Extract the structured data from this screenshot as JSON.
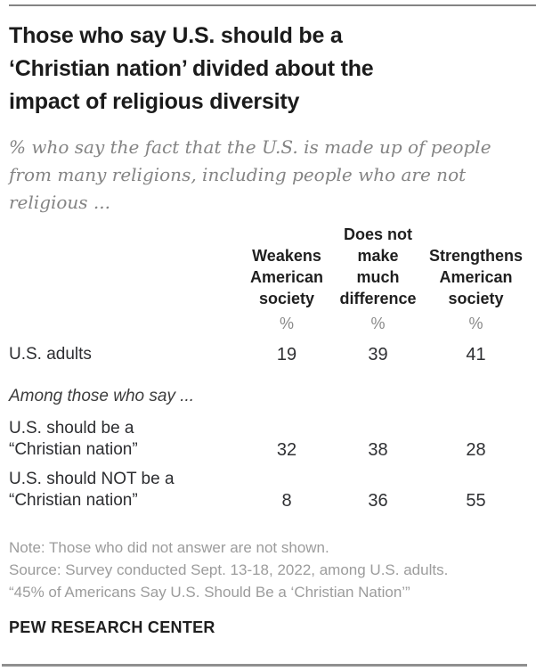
{
  "header": {
    "title": "Those who say U.S. should be a\n‘Christian nation’ divided about the\nimpact of religious diversity",
    "subtitle": "% who say the fact that the U.S. is made up of people\nfrom many religions, including people who are not\nreligious ..."
  },
  "ui": {
    "table": {
      "columns": [
        {
          "label": "Weakens\nAmerican\nsociety",
          "unit": "%"
        },
        {
          "label": "Does not\nmake\nmuch\ndifference",
          "unit": "%"
        },
        {
          "label": "Strengthens\nAmerican\nsociety",
          "unit": "%"
        }
      ],
      "section_label": "Among those who say ...",
      "row_labels": [
        "U.S. adults",
        "U.S. should be a\n“Christian nation”",
        "U.S. should NOT be a\n“Christian nation”"
      ]
    }
  },
  "chart_data": {
    "type": "table",
    "title": "Those who say U.S. should be a ‘Christian nation’ divided about the impact of religious diversity",
    "subtitle": "% who say the fact that the U.S. is made up of people from many religions, including people who are not religious ...",
    "columns": [
      "Weakens American society",
      "Does not make much difference",
      "Strengthens American society"
    ],
    "unit": "%",
    "rows": [
      {
        "label": "U.S. adults",
        "group": null,
        "values": [
          19,
          39,
          41
        ]
      },
      {
        "label": "U.S. should be a “Christian nation”",
        "group": "Among those who say ...",
        "values": [
          32,
          38,
          28
        ]
      },
      {
        "label": "U.S. should NOT be a “Christian nation”",
        "group": "Among those who say ...",
        "values": [
          8,
          36,
          55
        ]
      }
    ]
  },
  "notes": [
    "Note: Those who did not answer are not shown.",
    "Source: Survey conducted Sept. 13-18, 2022, among U.S. adults.",
    "“45% of Americans Say U.S. Should Be a ‘Christian Nation’”"
  ],
  "brand": "PEW RESEARCH CENTER",
  "colors": {
    "title_text": "#1b1b1b",
    "subtitle_text": "#848484",
    "value_text": "#2f3033",
    "unit_text": "#8a8a8a",
    "note_text": "#9c9c9c",
    "rule": "#8f8f8f",
    "background": "#ffffff"
  }
}
